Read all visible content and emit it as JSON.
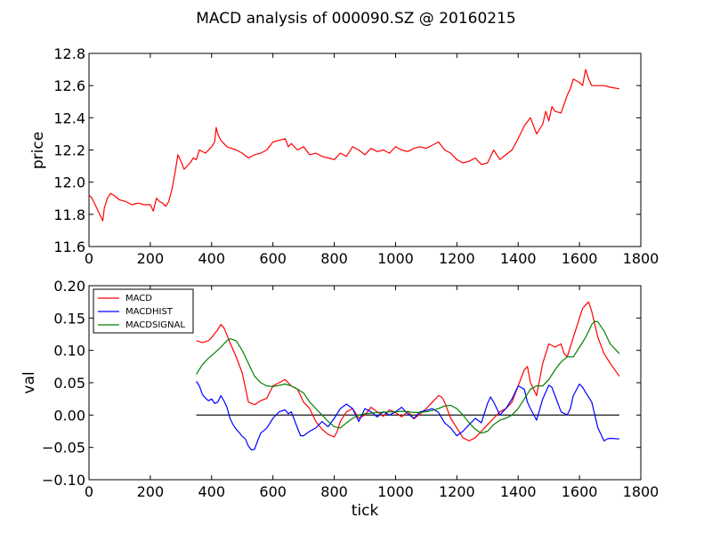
{
  "chart_data": [
    {
      "type": "line",
      "title": "MACD analysis of 000090.SZ @ 20160215",
      "ylabel": "price",
      "xlabel": "",
      "xlim": [
        0,
        1800
      ],
      "ylim": [
        11.6,
        12.8
      ],
      "xticks": [
        0,
        200,
        400,
        600,
        800,
        1000,
        1200,
        1400,
        1600,
        1800
      ],
      "yticks": [
        11.6,
        11.8,
        12.0,
        12.2,
        12.4,
        12.6,
        12.8
      ],
      "xtick_labels": [
        "0",
        "200",
        "400",
        "600",
        "800",
        "1000",
        "1200",
        "1400",
        "1600",
        "1800"
      ],
      "ytick_labels": [
        "11.6",
        "11.8",
        "12.0",
        "12.2",
        "12.4",
        "12.6",
        "12.8"
      ],
      "grid": false,
      "series": [
        {
          "color": "#ff0000",
          "x": [
            0,
            10,
            20,
            30,
            40,
            45,
            50,
            60,
            70,
            80,
            100,
            120,
            140,
            160,
            180,
            200,
            210,
            220,
            230,
            240,
            250,
            260,
            270,
            280,
            290,
            300,
            310,
            320,
            330,
            340,
            350,
            360,
            380,
            400,
            410,
            415,
            420,
            430,
            450,
            480,
            500,
            520,
            540,
            560,
            580,
            600,
            620,
            640,
            650,
            660,
            680,
            700,
            720,
            740,
            760,
            780,
            800,
            820,
            840,
            860,
            880,
            900,
            920,
            940,
            960,
            980,
            1000,
            1020,
            1040,
            1060,
            1080,
            1100,
            1120,
            1140,
            1160,
            1180,
            1200,
            1220,
            1240,
            1260,
            1280,
            1300,
            1320,
            1340,
            1360,
            1380,
            1400,
            1420,
            1440,
            1460,
            1480,
            1490,
            1500,
            1510,
            1520,
            1540,
            1560,
            1570,
            1580,
            1600,
            1610,
            1620,
            1630,
            1640,
            1660,
            1680,
            1700,
            1730
          ],
          "values": [
            11.92,
            11.9,
            11.86,
            11.82,
            11.78,
            11.76,
            11.84,
            11.9,
            11.93,
            11.92,
            11.89,
            11.88,
            11.86,
            11.87,
            11.86,
            11.86,
            11.82,
            11.9,
            11.88,
            11.87,
            11.85,
            11.88,
            11.95,
            12.05,
            12.17,
            12.13,
            12.08,
            12.1,
            12.12,
            12.15,
            12.14,
            12.2,
            12.18,
            12.22,
            12.25,
            12.34,
            12.3,
            12.26,
            12.22,
            12.2,
            12.18,
            12.15,
            12.17,
            12.18,
            12.2,
            12.25,
            12.26,
            12.27,
            12.22,
            12.24,
            12.2,
            12.22,
            12.17,
            12.18,
            12.16,
            12.15,
            12.14,
            12.18,
            12.16,
            12.22,
            12.2,
            12.17,
            12.21,
            12.19,
            12.2,
            12.18,
            12.22,
            12.2,
            12.19,
            12.21,
            12.22,
            12.21,
            12.23,
            12.25,
            12.2,
            12.18,
            12.14,
            12.12,
            12.13,
            12.15,
            12.11,
            12.12,
            12.2,
            12.14,
            12.17,
            12.2,
            12.27,
            12.35,
            12.4,
            12.3,
            12.36,
            12.44,
            12.38,
            12.47,
            12.44,
            12.43,
            12.54,
            12.58,
            12.64,
            12.62,
            12.6,
            12.7,
            12.64,
            12.6,
            12.6,
            12.6,
            12.59,
            12.58
          ]
        }
      ]
    },
    {
      "type": "line",
      "title": "",
      "xlabel": "tick",
      "ylabel": "val",
      "xlim": [
        0,
        1800
      ],
      "ylim": [
        -0.1,
        0.2
      ],
      "xticks": [
        0,
        200,
        400,
        600,
        800,
        1000,
        1200,
        1400,
        1600,
        1800
      ],
      "yticks": [
        -0.1,
        -0.05,
        0.0,
        0.05,
        0.1,
        0.15,
        0.2
      ],
      "xtick_labels": [
        "0",
        "200",
        "400",
        "600",
        "800",
        "1000",
        "1200",
        "1400",
        "1600",
        "1800"
      ],
      "ytick_labels": [
        "−0.10",
        "−0.05",
        "0.00",
        "0.05",
        "0.10",
        "0.15",
        "0.20"
      ],
      "grid": false,
      "legend_position": "upper-left",
      "hline": {
        "y": 0.0,
        "x": [
          350,
          1730
        ],
        "color": "#000000"
      },
      "series": [
        {
          "name": "MACD",
          "color": "#ff0000",
          "x": [
            350,
            370,
            390,
            400,
            420,
            430,
            440,
            460,
            480,
            500,
            520,
            540,
            560,
            580,
            600,
            620,
            640,
            650,
            660,
            680,
            700,
            720,
            740,
            760,
            780,
            800,
            810,
            820,
            840,
            860,
            880,
            900,
            920,
            940,
            960,
            980,
            1000,
            1020,
            1040,
            1060,
            1080,
            1100,
            1120,
            1140,
            1150,
            1160,
            1180,
            1200,
            1220,
            1240,
            1260,
            1280,
            1300,
            1320,
            1340,
            1360,
            1380,
            1400,
            1420,
            1430,
            1440,
            1460,
            1480,
            1500,
            1520,
            1540,
            1550,
            1560,
            1580,
            1600,
            1610,
            1620,
            1630,
            1640,
            1660,
            1680,
            1700,
            1730
          ],
          "values": [
            0.115,
            0.112,
            0.115,
            0.12,
            0.132,
            0.14,
            0.135,
            0.112,
            0.09,
            0.065,
            0.02,
            0.016,
            0.022,
            0.026,
            0.045,
            0.05,
            0.055,
            0.05,
            0.045,
            0.04,
            0.02,
            0.01,
            -0.01,
            -0.022,
            -0.03,
            -0.034,
            -0.025,
            -0.01,
            0.005,
            0.01,
            -0.005,
            0.0,
            0.012,
            0.005,
            -0.002,
            0.008,
            0.004,
            -0.003,
            0.006,
            -0.006,
            0.002,
            0.01,
            0.02,
            0.03,
            0.028,
            0.02,
            -0.005,
            -0.02,
            -0.035,
            -0.04,
            -0.035,
            -0.025,
            -0.015,
            -0.005,
            0.005,
            0.01,
            0.02,
            0.045,
            0.07,
            0.075,
            0.05,
            0.03,
            0.08,
            0.11,
            0.105,
            0.11,
            0.095,
            0.09,
            0.12,
            0.15,
            0.165,
            0.17,
            0.175,
            0.16,
            0.12,
            0.095,
            0.08,
            0.06
          ]
        },
        {
          "name": "MACDHIST",
          "color": "#0000ff",
          "x": [
            350,
            360,
            370,
            380,
            390,
            400,
            410,
            420,
            430,
            440,
            450,
            460,
            470,
            480,
            490,
            500,
            510,
            520,
            530,
            540,
            550,
            560,
            580,
            600,
            620,
            640,
            650,
            660,
            680,
            690,
            700,
            720,
            740,
            760,
            780,
            800,
            820,
            840,
            860,
            880,
            900,
            920,
            940,
            960,
            980,
            1000,
            1020,
            1040,
            1060,
            1080,
            1100,
            1120,
            1140,
            1160,
            1180,
            1200,
            1220,
            1240,
            1260,
            1280,
            1300,
            1310,
            1320,
            1340,
            1360,
            1380,
            1400,
            1420,
            1430,
            1440,
            1460,
            1480,
            1500,
            1510,
            1520,
            1540,
            1560,
            1570,
            1580,
            1600,
            1610,
            1620,
            1640,
            1660,
            1680,
            1690,
            1700,
            1730
          ],
          "values": [
            0.052,
            0.045,
            0.032,
            0.026,
            0.022,
            0.025,
            0.018,
            0.02,
            0.03,
            0.022,
            0.012,
            -0.005,
            -0.015,
            -0.022,
            -0.027,
            -0.033,
            -0.037,
            -0.048,
            -0.054,
            -0.053,
            -0.04,
            -0.028,
            -0.02,
            -0.005,
            0.005,
            0.008,
            0.002,
            0.005,
            -0.02,
            -0.032,
            -0.032,
            -0.025,
            -0.02,
            -0.01,
            -0.018,
            -0.005,
            0.01,
            0.017,
            0.01,
            -0.01,
            0.01,
            0.005,
            -0.003,
            0.005,
            0.0,
            0.005,
            0.012,
            0.002,
            -0.005,
            0.005,
            0.007,
            0.01,
            0.004,
            -0.012,
            -0.02,
            -0.032,
            -0.025,
            -0.015,
            -0.005,
            -0.012,
            0.018,
            0.028,
            0.02,
            0.0,
            0.01,
            0.025,
            0.045,
            0.04,
            0.02,
            0.01,
            -0.008,
            0.025,
            0.046,
            0.043,
            0.03,
            0.005,
            0.0,
            0.01,
            0.03,
            0.048,
            0.043,
            0.035,
            0.02,
            -0.02,
            -0.04,
            -0.037,
            -0.036,
            -0.037
          ]
        },
        {
          "name": "MACDSIGNAL",
          "color": "#008000",
          "x": [
            350,
            370,
            390,
            410,
            430,
            450,
            460,
            480,
            500,
            520,
            540,
            560,
            580,
            600,
            620,
            640,
            660,
            680,
            700,
            720,
            740,
            760,
            780,
            800,
            820,
            840,
            860,
            880,
            900,
            920,
            940,
            960,
            980,
            1000,
            1020,
            1040,
            1060,
            1080,
            1100,
            1120,
            1140,
            1160,
            1180,
            1200,
            1220,
            1240,
            1260,
            1280,
            1300,
            1320,
            1340,
            1360,
            1380,
            1400,
            1420,
            1440,
            1460,
            1480,
            1500,
            1520,
            1540,
            1560,
            1580,
            1600,
            1620,
            1640,
            1650,
            1660,
            1680,
            1700,
            1730
          ],
          "values": [
            0.063,
            0.078,
            0.088,
            0.096,
            0.105,
            0.115,
            0.118,
            0.115,
            0.1,
            0.08,
            0.06,
            0.05,
            0.045,
            0.044,
            0.046,
            0.048,
            0.045,
            0.04,
            0.034,
            0.02,
            0.01,
            0.0,
            -0.01,
            -0.018,
            -0.02,
            -0.012,
            -0.005,
            0.0,
            0.002,
            0.003,
            0.004,
            0.004,
            0.005,
            0.005,
            0.006,
            0.005,
            0.004,
            0.004,
            0.005,
            0.007,
            0.01,
            0.014,
            0.015,
            0.01,
            0.0,
            -0.012,
            -0.022,
            -0.028,
            -0.025,
            -0.015,
            -0.008,
            -0.005,
            0.0,
            0.01,
            0.025,
            0.04,
            0.045,
            0.045,
            0.055,
            0.07,
            0.082,
            0.09,
            0.09,
            0.105,
            0.12,
            0.14,
            0.145,
            0.144,
            0.13,
            0.11,
            0.095
          ]
        }
      ]
    }
  ]
}
